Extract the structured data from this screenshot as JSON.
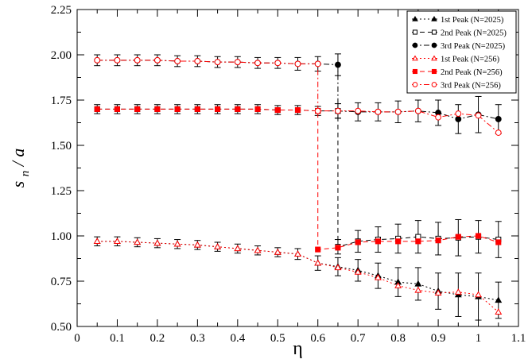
{
  "chart_data": {
    "type": "scatter",
    "xlabel": "η",
    "ylabel_main": "s",
    "ylabel_sub": "n",
    "ylabel_tail": " / a",
    "xlim": [
      0,
      1.1
    ],
    "ylim": [
      0.5,
      2.25
    ],
    "xticks": [
      0,
      0.1,
      0.2,
      0.3,
      0.4,
      0.5,
      0.6,
      0.7,
      0.8,
      0.9,
      1,
      1.1
    ],
    "xtick_labels": [
      "0",
      "0.1",
      "0.2",
      "0.3",
      "0.4",
      "0.5",
      "0.6",
      "0.7",
      "0.8",
      "0.9",
      "1",
      "1.1"
    ],
    "yticks": [
      0.5,
      0.75,
      1.0,
      1.25,
      1.5,
      1.75,
      2.0,
      2.25
    ],
    "ytick_labels": [
      "0.50",
      "0.75",
      "1.00",
      "1.25",
      "1.50",
      "1.75",
      "2.00",
      "2.25"
    ],
    "grid": false,
    "legend_position": "top-right",
    "series": [
      {
        "name": "1st Peak (N=2025)",
        "color": "#000000",
        "marker": "triangle",
        "filled": true,
        "dash": "2,3",
        "x": [
          0.05,
          0.1,
          0.15,
          0.2,
          0.25,
          0.3,
          0.35,
          0.4,
          0.45,
          0.5,
          0.55,
          0.6,
          0.65,
          0.7,
          0.75,
          0.8,
          0.85,
          0.9,
          0.95,
          1.0,
          1.05
        ],
        "y": [
          0.97,
          0.97,
          0.965,
          0.96,
          0.955,
          0.95,
          0.94,
          0.93,
          0.92,
          0.91,
          0.9,
          0.85,
          0.83,
          0.81,
          0.78,
          0.745,
          0.735,
          0.695,
          0.675,
          0.665,
          0.645
        ],
        "err": [
          0.025,
          0.025,
          0.025,
          0.025,
          0.025,
          0.025,
          0.025,
          0.025,
          0.025,
          0.025,
          0.03,
          0.04,
          0.05,
          0.06,
          0.07,
          0.08,
          0.09,
          0.1,
          0.12,
          0.13,
          0.1
        ]
      },
      {
        "name": "2nd Peak (N=2025)",
        "color": "#000000",
        "marker": "square",
        "filled": false,
        "dash": "6,4",
        "x": [
          0.05,
          0.1,
          0.15,
          0.2,
          0.25,
          0.3,
          0.35,
          0.4,
          0.45,
          0.5,
          0.55,
          0.6,
          0.65,
          0.65,
          0.7,
          0.75,
          0.8,
          0.85,
          0.9,
          0.95,
          1.0,
          1.05
        ],
        "y": [
          1.7,
          1.7,
          1.7,
          1.7,
          1.7,
          1.7,
          1.7,
          1.7,
          1.7,
          1.695,
          1.695,
          1.69,
          1.69,
          0.94,
          0.97,
          0.98,
          0.985,
          0.995,
          0.985,
          0.99,
          0.995,
          0.98
        ],
        "err": [
          0.025,
          0.025,
          0.025,
          0.025,
          0.025,
          0.025,
          0.025,
          0.025,
          0.025,
          0.025,
          0.025,
          0.025,
          0.04,
          0.04,
          0.06,
          0.07,
          0.08,
          0.09,
          0.09,
          0.1,
          0.09,
          0.1
        ]
      },
      {
        "name": "3rd Peak (N=2025)",
        "color": "#000000",
        "marker": "circle",
        "filled": true,
        "dash": "7,3,2,3",
        "x": [
          0.05,
          0.1,
          0.15,
          0.2,
          0.25,
          0.3,
          0.35,
          0.4,
          0.45,
          0.5,
          0.55,
          0.6,
          0.65,
          0.65,
          0.7,
          0.75,
          0.8,
          0.85,
          0.9,
          0.95,
          1.0,
          1.05
        ],
        "y": [
          1.97,
          1.97,
          1.97,
          1.97,
          1.965,
          1.965,
          1.96,
          1.96,
          1.955,
          1.955,
          1.95,
          1.95,
          1.945,
          1.69,
          1.685,
          1.685,
          1.685,
          1.69,
          1.68,
          1.645,
          1.67,
          1.645
        ],
        "err": [
          0.03,
          0.03,
          0.03,
          0.03,
          0.03,
          0.03,
          0.03,
          0.03,
          0.03,
          0.03,
          0.035,
          0.04,
          0.06,
          0.04,
          0.05,
          0.05,
          0.06,
          0.06,
          0.07,
          0.08,
          0.1,
          0.08
        ]
      },
      {
        "name": "1st Peak (N=256)",
        "color": "#ff0000",
        "marker": "triangle",
        "filled": false,
        "dash": "2,3",
        "x": [
          0.05,
          0.1,
          0.15,
          0.2,
          0.25,
          0.3,
          0.35,
          0.4,
          0.45,
          0.5,
          0.55,
          0.6,
          0.65,
          0.7,
          0.75,
          0.8,
          0.85,
          0.9,
          0.95,
          1.0,
          1.05
        ],
        "y": [
          0.97,
          0.97,
          0.965,
          0.96,
          0.955,
          0.95,
          0.94,
          0.93,
          0.92,
          0.91,
          0.9,
          0.85,
          0.825,
          0.8,
          0.77,
          0.725,
          0.7,
          0.685,
          0.69,
          0.675,
          0.58
        ],
        "err": [
          0,
          0,
          0,
          0,
          0,
          0,
          0,
          0,
          0,
          0,
          0,
          0,
          0,
          0,
          0,
          0,
          0,
          0,
          0,
          0,
          0
        ]
      },
      {
        "name": "2nd Peak (N=256)",
        "color": "#ff0000",
        "marker": "square",
        "filled": true,
        "dash": "6,4",
        "x": [
          0.05,
          0.1,
          0.15,
          0.2,
          0.25,
          0.3,
          0.35,
          0.4,
          0.45,
          0.5,
          0.55,
          0.6,
          0.6,
          0.65,
          0.7,
          0.75,
          0.8,
          0.85,
          0.9,
          0.95,
          1.0,
          1.05
        ],
        "y": [
          1.7,
          1.7,
          1.7,
          1.7,
          1.7,
          1.7,
          1.7,
          1.7,
          1.7,
          1.695,
          1.695,
          1.69,
          0.925,
          0.935,
          0.965,
          0.97,
          0.97,
          0.97,
          0.975,
          0.995,
          1.0,
          0.965
        ],
        "err": [
          0,
          0,
          0,
          0,
          0,
          0,
          0,
          0,
          0,
          0,
          0,
          0,
          0,
          0,
          0,
          0,
          0,
          0,
          0,
          0,
          0,
          0
        ]
      },
      {
        "name": "3rd Peak (N=256)",
        "color": "#ff0000",
        "marker": "circle",
        "filled": false,
        "dash": "7,3,2,3",
        "x": [
          0.05,
          0.1,
          0.15,
          0.2,
          0.25,
          0.3,
          0.35,
          0.4,
          0.45,
          0.5,
          0.55,
          0.6,
          0.6,
          0.65,
          0.7,
          0.75,
          0.8,
          0.85,
          0.9,
          0.95,
          1.0,
          1.05
        ],
        "y": [
          1.97,
          1.97,
          1.97,
          1.97,
          1.965,
          1.965,
          1.96,
          1.96,
          1.955,
          1.955,
          1.95,
          1.95,
          1.69,
          1.69,
          1.69,
          1.685,
          1.685,
          1.69,
          1.655,
          1.675,
          1.665,
          1.57
        ],
        "err": [
          0,
          0,
          0,
          0,
          0,
          0,
          0,
          0,
          0,
          0,
          0,
          0,
          0,
          0,
          0,
          0,
          0,
          0,
          0,
          0,
          0,
          0
        ]
      }
    ]
  }
}
